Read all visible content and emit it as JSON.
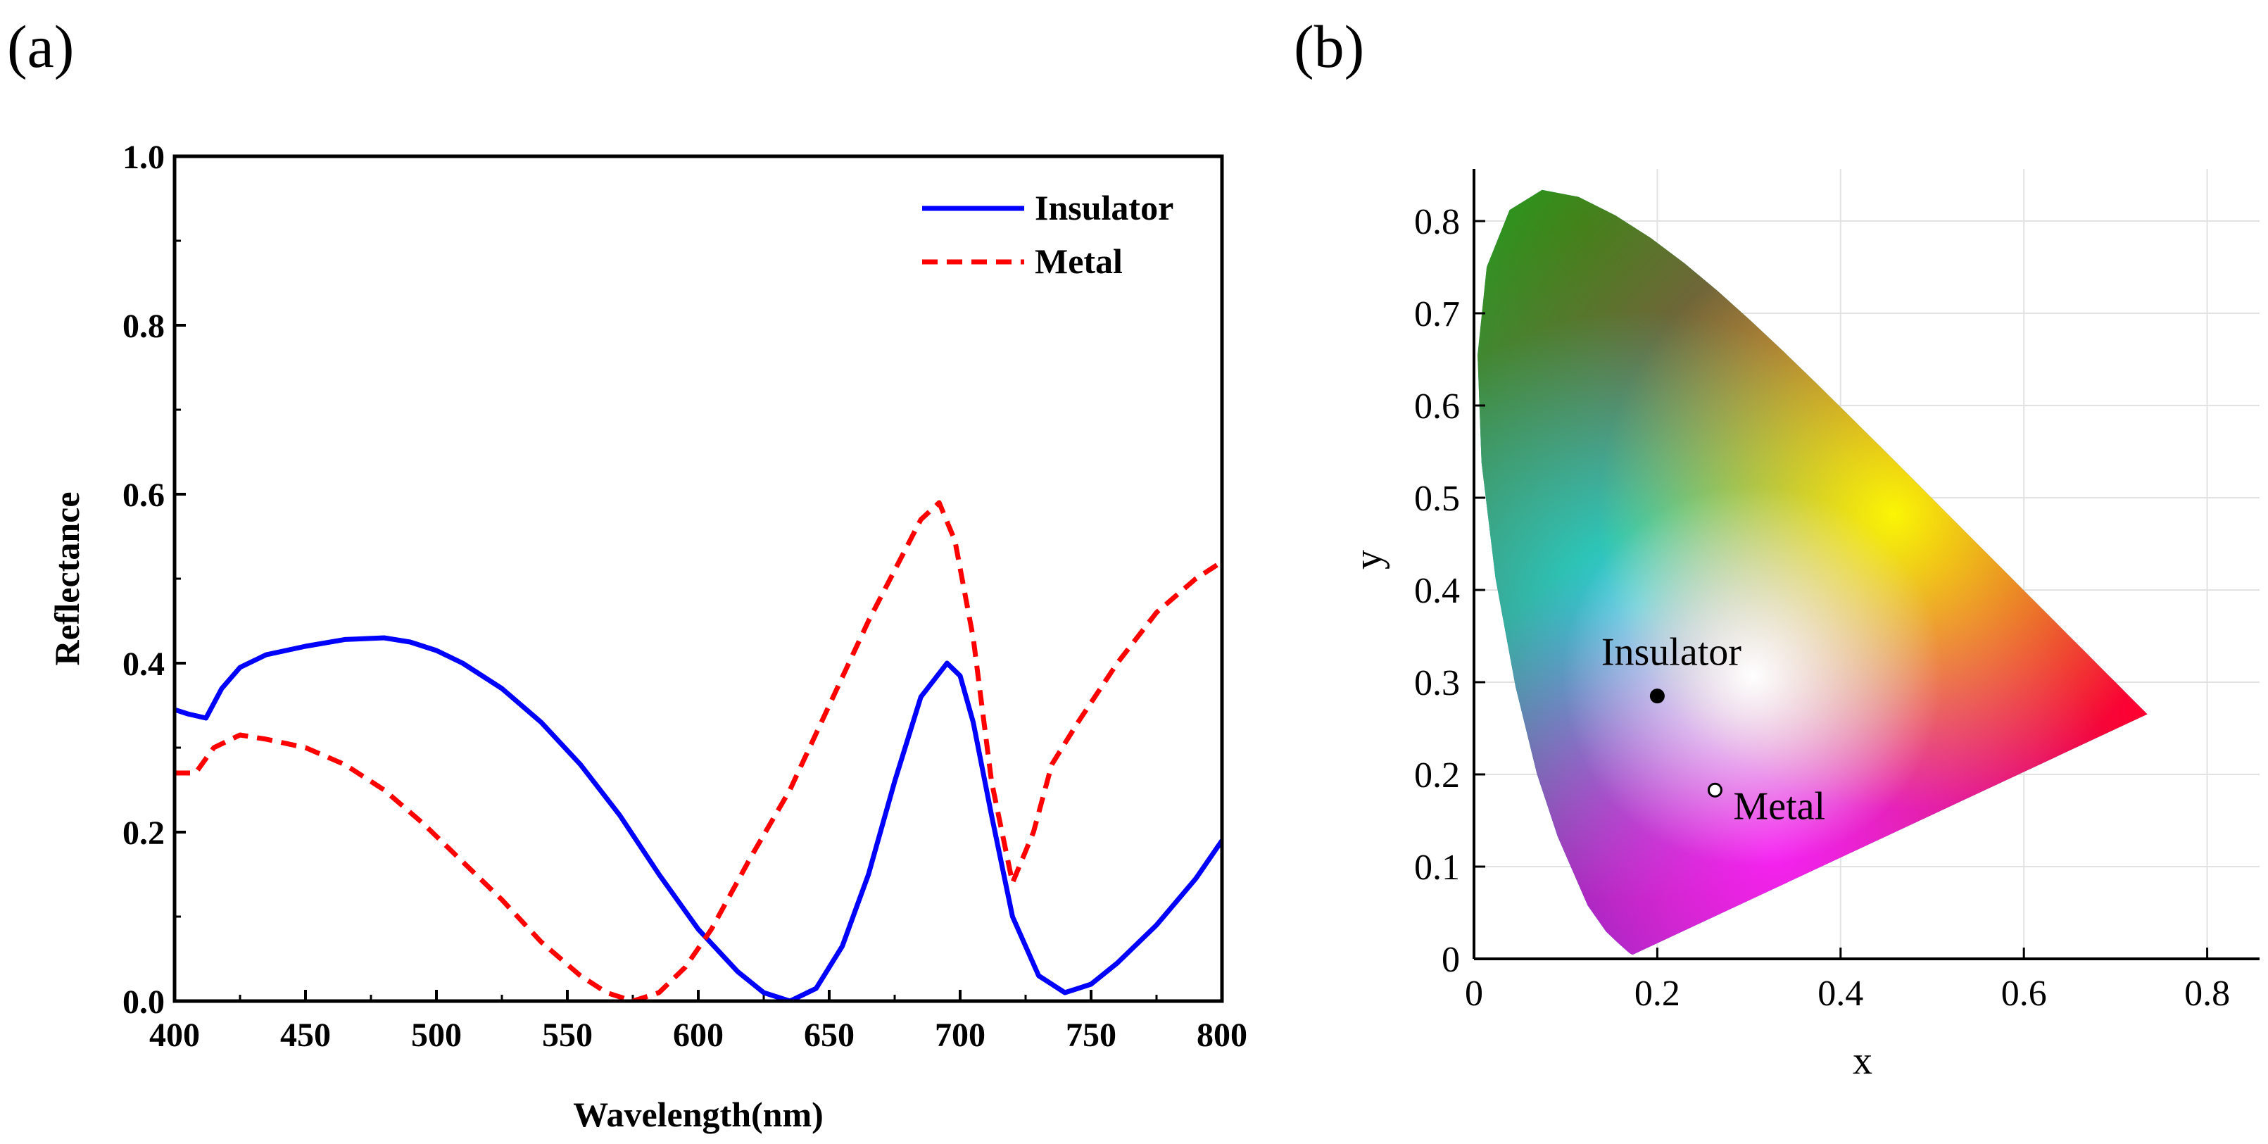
{
  "panel_labels": [
    "(a)",
    "(b)"
  ],
  "chart_data": [
    {
      "type": "line",
      "panel": "(a)",
      "title": "",
      "xlabel": "Wavelength(nm)",
      "ylabel": "Reflectance",
      "xlim": [
        400,
        800
      ],
      "ylim": [
        0,
        1.0
      ],
      "xticks": [
        400,
        450,
        500,
        550,
        600,
        650,
        700,
        750,
        800
      ],
      "xtick_labels": [
        "400",
        "450",
        "500",
        "550",
        "600",
        "650",
        "700",
        "750",
        "800"
      ],
      "yticks": [
        0,
        0.2,
        0.4,
        0.6,
        0.8,
        1.0
      ],
      "ytick_labels": [
        "0.0",
        "0.2",
        "0.4",
        "0.6",
        "0.8",
        "1.0"
      ],
      "grid": false,
      "legend": "top-right",
      "series": [
        {
          "name": "Insulator",
          "color": "#0000ff",
          "style": "solid",
          "x": [
            400,
            405,
            412,
            418,
            425,
            435,
            450,
            465,
            480,
            490,
            500,
            510,
            525,
            540,
            555,
            570,
            585,
            600,
            615,
            625,
            635,
            645,
            655,
            665,
            675,
            685,
            695,
            700,
            705,
            712,
            720,
            730,
            740,
            750,
            760,
            775,
            790,
            800
          ],
          "y": [
            0.345,
            0.34,
            0.335,
            0.37,
            0.395,
            0.41,
            0.42,
            0.428,
            0.43,
            0.425,
            0.415,
            0.4,
            0.37,
            0.33,
            0.28,
            0.22,
            0.15,
            0.085,
            0.035,
            0.01,
            0.0,
            0.015,
            0.065,
            0.15,
            0.26,
            0.36,
            0.4,
            0.385,
            0.33,
            0.22,
            0.1,
            0.03,
            0.01,
            0.02,
            0.045,
            0.09,
            0.145,
            0.19
          ]
        },
        {
          "name": "Metal",
          "color": "#ff0000",
          "style": "dashed",
          "x": [
            400,
            408,
            415,
            425,
            435,
            450,
            465,
            480,
            495,
            510,
            525,
            540,
            555,
            565,
            575,
            585,
            595,
            605,
            620,
            635,
            650,
            665,
            675,
            685,
            692,
            698,
            705,
            712,
            720,
            728,
            735,
            745,
            760,
            775,
            790,
            800
          ],
          "y": [
            0.27,
            0.27,
            0.3,
            0.315,
            0.31,
            0.3,
            0.28,
            0.25,
            0.21,
            0.165,
            0.12,
            0.07,
            0.03,
            0.01,
            0.0,
            0.01,
            0.04,
            0.085,
            0.17,
            0.25,
            0.35,
            0.45,
            0.51,
            0.57,
            0.59,
            0.545,
            0.43,
            0.26,
            0.14,
            0.2,
            0.28,
            0.33,
            0.4,
            0.46,
            0.5,
            0.52
          ]
        }
      ]
    },
    {
      "type": "scatter",
      "panel": "(b)",
      "title": "",
      "xlabel": "x",
      "ylabel": "y",
      "xlim": [
        0,
        0.85
      ],
      "ylim": [
        0,
        0.85
      ],
      "xticks": [
        0,
        0.2,
        0.4,
        0.6,
        0.8
      ],
      "xtick_labels": [
        "0",
        "0.2",
        "0.4",
        "0.6",
        "0.8"
      ],
      "yticks": [
        0,
        0.1,
        0.2,
        0.3,
        0.4,
        0.5,
        0.6,
        0.7,
        0.8
      ],
      "ytick_labels": [
        "0",
        "0.1",
        "0.2",
        "0.3",
        "0.4",
        "0.5",
        "0.6",
        "0.7",
        "0.8"
      ],
      "grid": true,
      "background": "CIE 1931 chromaticity diagram",
      "points": [
        {
          "name": "Insulator",
          "x": 0.2,
          "y": 0.285,
          "fill": "#000000",
          "label_side": "above"
        },
        {
          "name": "Metal",
          "x": 0.263,
          "y": 0.183,
          "fill": "#ffffff",
          "label_side": "right"
        }
      ]
    }
  ]
}
